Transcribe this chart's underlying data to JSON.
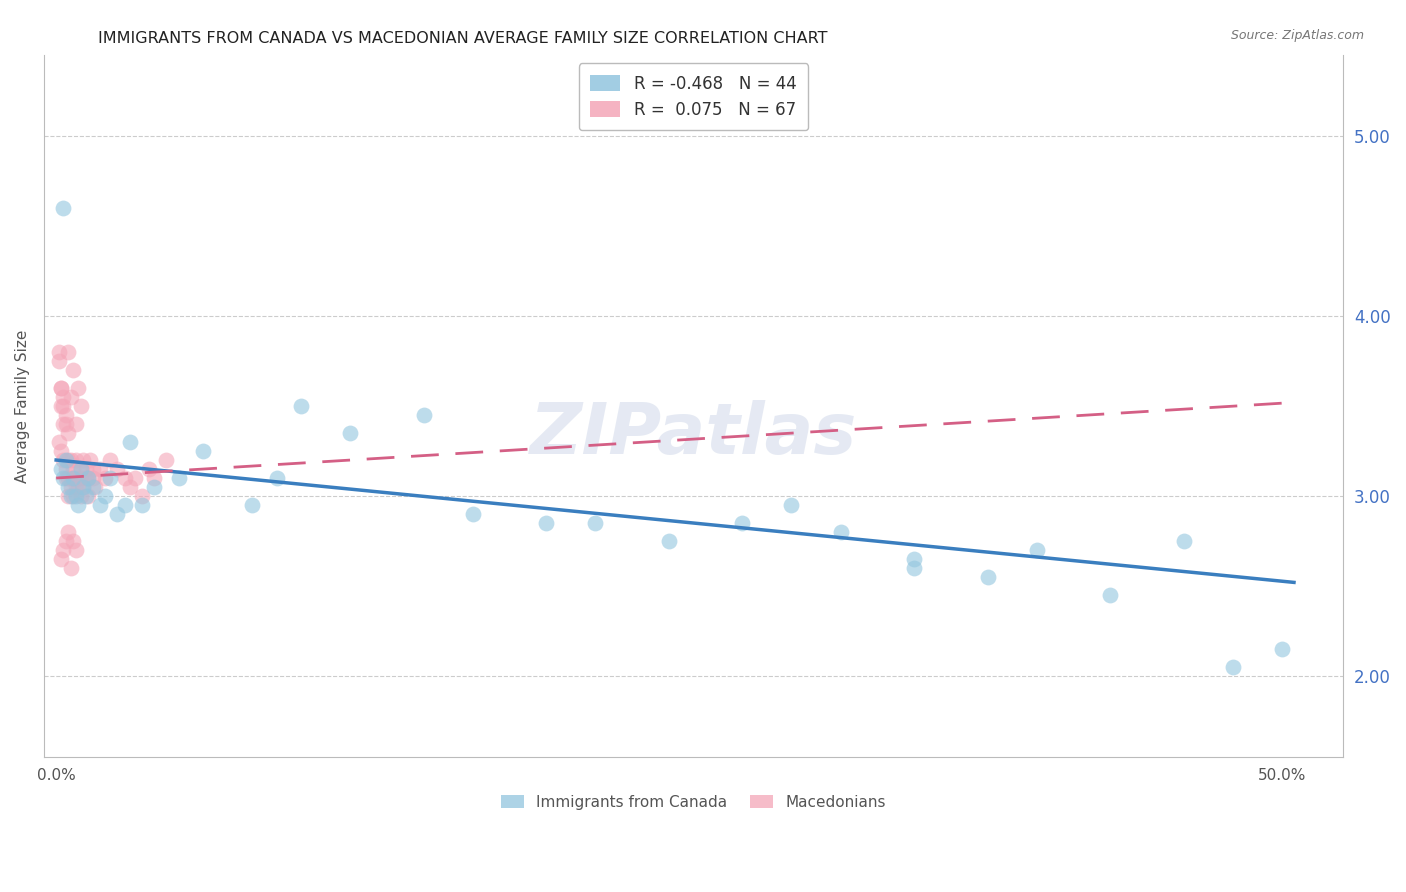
{
  "title": "IMMIGRANTS FROM CANADA VS MACEDONIAN AVERAGE FAMILY SIZE CORRELATION CHART",
  "source": "Source: ZipAtlas.com",
  "ylabel": "Average Family Size",
  "watermark": "ZIPatlas",
  "legend_blue_r": "-0.468",
  "legend_blue_n": "44",
  "legend_pink_r": "0.075",
  "legend_pink_n": "67",
  "yticks": [
    2.0,
    3.0,
    4.0,
    5.0
  ],
  "ylim": [
    1.55,
    5.45
  ],
  "xlim": [
    -0.005,
    0.525
  ],
  "blue_color": "#92c5de",
  "pink_color": "#f4a6b8",
  "blue_line_color": "#3a7ebf",
  "pink_line_color": "#d45f85",
  "grid_color": "#cccccc",
  "right_axis_color": "#4472c4",
  "title_color": "#222222",
  "blue_x": [
    0.002,
    0.003,
    0.004,
    0.005,
    0.006,
    0.007,
    0.008,
    0.009,
    0.01,
    0.011,
    0.012,
    0.013,
    0.015,
    0.018,
    0.02,
    0.022,
    0.025,
    0.028,
    0.03,
    0.035,
    0.04,
    0.05,
    0.06,
    0.08,
    0.09,
    0.1,
    0.12,
    0.15,
    0.17,
    0.2,
    0.22,
    0.25,
    0.28,
    0.3,
    0.32,
    0.35,
    0.38,
    0.4,
    0.43,
    0.46,
    0.48,
    0.5,
    0.003,
    0.35
  ],
  "blue_y": [
    3.15,
    3.1,
    3.2,
    3.05,
    3.0,
    3.1,
    3.0,
    2.95,
    3.15,
    3.05,
    3.0,
    3.1,
    3.05,
    2.95,
    3.0,
    3.1,
    2.9,
    2.95,
    3.3,
    2.95,
    3.05,
    3.1,
    3.25,
    2.95,
    3.1,
    3.5,
    3.35,
    3.45,
    2.9,
    2.85,
    2.85,
    2.75,
    2.85,
    2.95,
    2.8,
    2.6,
    2.55,
    2.7,
    2.45,
    2.75,
    2.05,
    2.15,
    4.6,
    2.65
  ],
  "pink_x": [
    0.001,
    0.001,
    0.002,
    0.002,
    0.002,
    0.003,
    0.003,
    0.003,
    0.004,
    0.004,
    0.004,
    0.005,
    0.005,
    0.005,
    0.005,
    0.006,
    0.006,
    0.006,
    0.007,
    0.007,
    0.007,
    0.008,
    0.008,
    0.008,
    0.009,
    0.009,
    0.01,
    0.01,
    0.01,
    0.011,
    0.011,
    0.012,
    0.012,
    0.013,
    0.013,
    0.014,
    0.015,
    0.015,
    0.016,
    0.018,
    0.02,
    0.022,
    0.025,
    0.028,
    0.03,
    0.032,
    0.035,
    0.038,
    0.04,
    0.045,
    0.001,
    0.002,
    0.003,
    0.004,
    0.005,
    0.006,
    0.007,
    0.008,
    0.009,
    0.01,
    0.002,
    0.003,
    0.004,
    0.005,
    0.006,
    0.007,
    0.008
  ],
  "pink_y": [
    3.3,
    3.8,
    3.25,
    3.6,
    3.5,
    3.2,
    3.55,
    3.4,
    3.15,
    3.4,
    3.1,
    3.35,
    3.2,
    3.1,
    3.0,
    3.1,
    3.05,
    3.2,
    3.1,
    3.0,
    3.15,
    3.05,
    3.2,
    3.1,
    3.05,
    3.1,
    3.15,
    3.0,
    3.1,
    3.05,
    3.2,
    3.1,
    3.15,
    3.0,
    3.1,
    3.2,
    3.15,
    3.1,
    3.05,
    3.15,
    3.1,
    3.2,
    3.15,
    3.1,
    3.05,
    3.1,
    3.0,
    3.15,
    3.1,
    3.2,
    3.75,
    3.6,
    3.5,
    3.45,
    3.8,
    3.55,
    3.7,
    3.4,
    3.6,
    3.5,
    2.65,
    2.7,
    2.75,
    2.8,
    2.6,
    2.75,
    2.7
  ],
  "blue_trend_x0": 0.0,
  "blue_trend_x1": 0.505,
  "blue_trend_y0": 3.2,
  "blue_trend_y1": 2.52,
  "pink_trend_x0": 0.0,
  "pink_trend_x1": 0.505,
  "pink_trend_y0": 3.1,
  "pink_trend_y1": 3.52
}
